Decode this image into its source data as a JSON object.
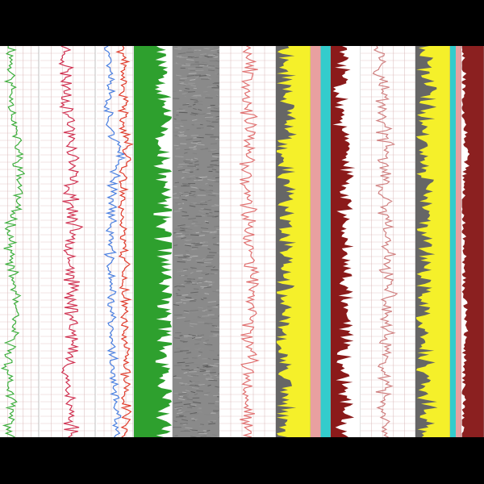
{
  "chart_data": {
    "type": "well-log",
    "title": "",
    "grid": true,
    "depth_samples": 200,
    "tracks": [
      {
        "name": "track-1-gr",
        "background": "#ffffff",
        "grid": true,
        "series": [
          {
            "name": "",
            "color": "#3cae3c",
            "range": [
              0,
              1
            ],
            "seed": 11,
            "base": [
              0.3,
              0.28,
              0.36,
              0.48,
              0.52,
              0.3,
              0.25,
              0.4,
              0.34,
              0.2,
              0.28,
              0.24
            ]
          }
        ]
      },
      {
        "name": "track-2-res",
        "background": "#ffffff",
        "grid": true,
        "series": [
          {
            "name": "",
            "color": "#d03050",
            "range": [
              0,
              1
            ],
            "seed": 23,
            "base": [
              0.45,
              0.48,
              0.52,
              0.6,
              0.55,
              0.6,
              0.58,
              0.55,
              0.62,
              0.5,
              0.52,
              0.6
            ]
          }
        ]
      },
      {
        "name": "track-3-por",
        "background": "#ffffff",
        "grid": true,
        "series": [
          {
            "name": "",
            "color": "#4a7fe0",
            "range": [
              0,
              1
            ],
            "seed": 37,
            "base": [
              0.35,
              0.4,
              0.3,
              0.62,
              0.45,
              0.4,
              0.35,
              0.42,
              0.38,
              0.45,
              0.5,
              0.55
            ]
          },
          {
            "name": "",
            "color": "#e03c2c",
            "range": [
              0,
              1
            ],
            "seed": 41,
            "base": [
              0.7,
              0.72,
              0.75,
              0.85,
              0.7,
              0.72,
              0.78,
              0.75,
              0.8,
              0.78,
              0.82,
              0.8
            ]
          }
        ]
      },
      {
        "name": "track-4-fill",
        "background": "#ffffff",
        "fill_color": "#2ea02e",
        "fill_from": "left",
        "seed": 53,
        "base": [
          0.8,
          0.82,
          0.85,
          0.7,
          0.78,
          0.8,
          0.84,
          0.82,
          0.86,
          0.8,
          0.82,
          0.78
        ]
      },
      {
        "name": "track-5-image",
        "background": "#8a8a8a",
        "texture": true
      },
      {
        "name": "track-6-trace",
        "background": "#ffffff",
        "grid": true,
        "series": [
          {
            "name": "",
            "color": "#e07070",
            "range": [
              0,
              1
            ],
            "seed": 67,
            "base": [
              0.55,
              0.55,
              0.52,
              0.5,
              0.48,
              0.52,
              0.55,
              0.58,
              0.55,
              0.52,
              0.5,
              0.55
            ]
          }
        ]
      },
      {
        "name": "track-7-lith",
        "background": "#666666",
        "fill_color": "#f5f02a",
        "fill_from": "right",
        "seed": 71,
        "base": [
          0.7,
          0.75,
          0.6,
          0.85,
          0.62,
          0.7,
          0.68,
          0.78,
          0.82,
          0.75,
          0.7,
          0.72
        ]
      },
      {
        "name": "track-8-band",
        "background": "#33cccc",
        "stripes": [
          "#e8a0a0",
          "#33cccc"
        ]
      },
      {
        "name": "track-9-dark",
        "background": "#ffffff",
        "fill_color": "#8b1a1a",
        "fill_from": "left",
        "seed": 83,
        "base": [
          0.4,
          0.45,
          0.3,
          0.55,
          0.5,
          0.48,
          0.6,
          0.55,
          0.58,
          0.45,
          0.5,
          0.42
        ]
      },
      {
        "name": "track-10-trace",
        "background": "#ffffff",
        "grid": true,
        "series": [
          {
            "name": "",
            "color": "#d08080",
            "range": [
              0,
              1
            ],
            "seed": 97,
            "base": [
              0.4,
              0.4,
              0.42,
              0.45,
              0.4,
              0.45,
              0.48,
              0.5,
              0.45,
              0.42,
              0.4,
              0.4
            ]
          }
        ]
      },
      {
        "name": "track-11-lith",
        "background": "#666666",
        "fill_color": "#f5f02a",
        "fill_from": "right",
        "seed": 101,
        "base": [
          0.72,
          0.7,
          0.65,
          0.82,
          0.66,
          0.7,
          0.72,
          0.76,
          0.8,
          0.74,
          0.7,
          0.7
        ]
      },
      {
        "name": "track-12-band",
        "background": "#e8a0a0",
        "stripes": [
          "#33cccc",
          "#e8a0a0"
        ]
      },
      {
        "name": "track-13-dark",
        "background": "#8b2020",
        "fill_color": "#ffffff",
        "fill_from": "left",
        "seed": 113,
        "sparse": true,
        "base": [
          0.05,
          0.05,
          0.05,
          0.3,
          0.05,
          0.05,
          0.1,
          0.15,
          0.2,
          0.1,
          0.05,
          0.05
        ]
      }
    ]
  }
}
